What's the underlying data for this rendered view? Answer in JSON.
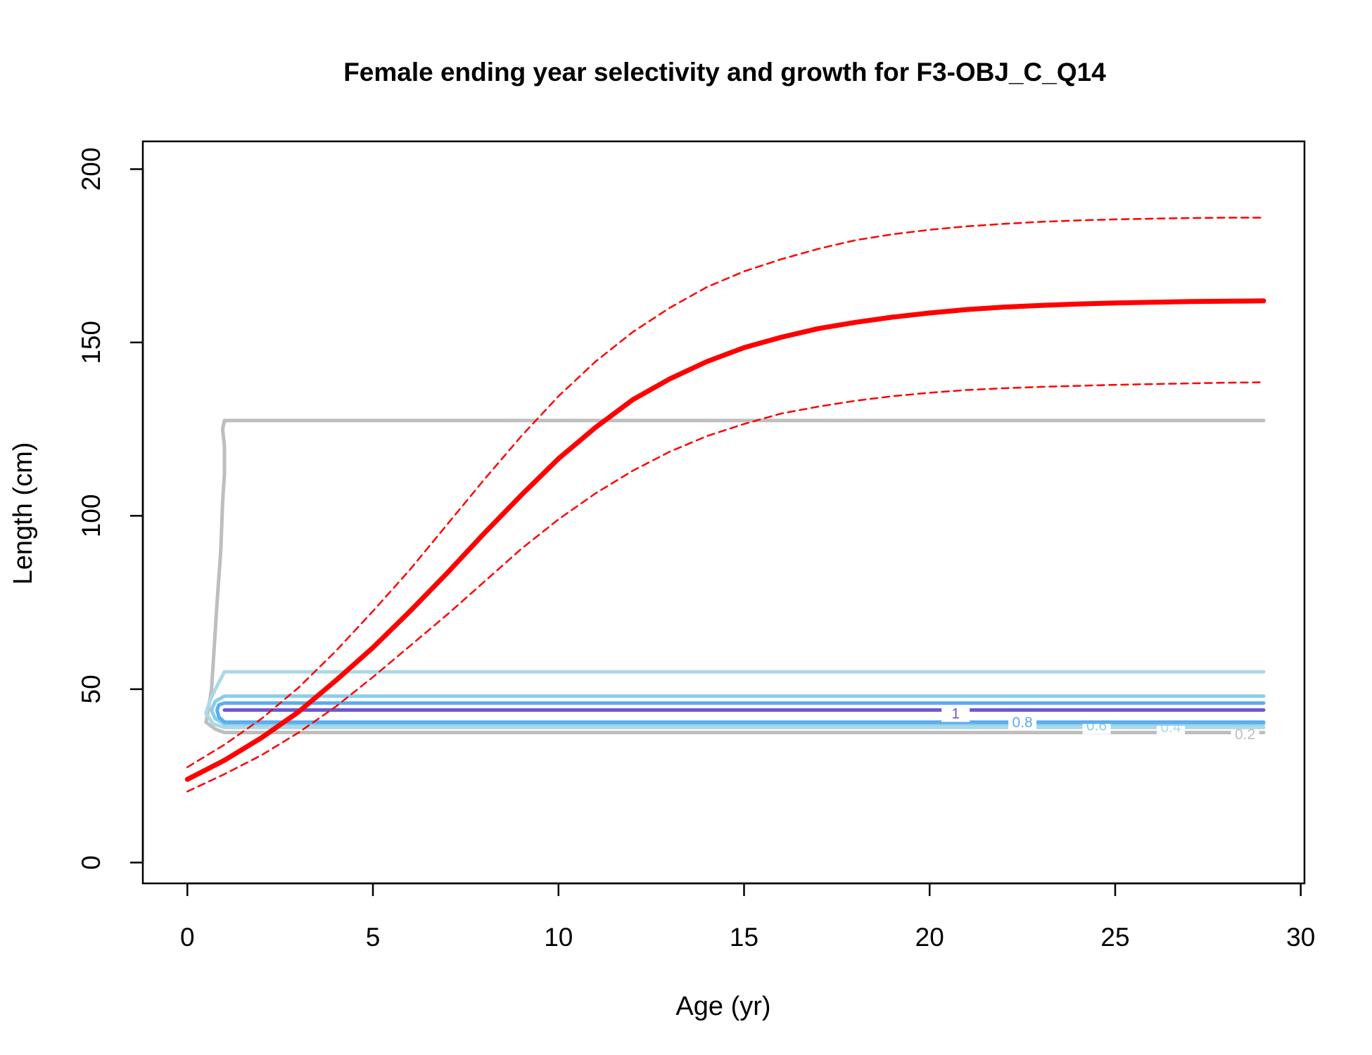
{
  "chart_data": {
    "type": "line",
    "title": "Female ending year selectivity and growth for F3-OBJ_C_Q14",
    "xlabel": "Age (yr)",
    "ylabel": "Length (cm)",
    "xlim": [
      -1.2,
      30.1
    ],
    "ylim": [
      -6,
      208
    ],
    "x_ticks": [
      0,
      5,
      10,
      15,
      20,
      25,
      30
    ],
    "y_ticks": [
      0,
      50,
      100,
      150,
      200
    ],
    "grid": false,
    "colors": {
      "mean_growth": "#ff0000",
      "interval": "#ff0000",
      "contour_0_2": "#bebebe",
      "contour_0_4": "#add8e6",
      "contour_0_6": "#87ceeb",
      "contour_0_8": "#5cacee",
      "contour_1": "#6a5acd"
    },
    "series": [
      {
        "role": "mean-growth",
        "x": [
          0,
          1,
          2,
          3,
          4,
          5,
          6,
          7,
          8,
          9,
          10,
          11,
          12,
          13,
          14,
          15,
          16,
          17,
          18,
          19,
          20,
          21,
          22,
          23,
          24,
          25,
          26,
          27,
          28,
          29
        ],
        "y": [
          24,
          29.5,
          36,
          43.5,
          52.5,
          62,
          72.5,
          83.5,
          95,
          106,
          116.5,
          125.5,
          133.5,
          139.5,
          144.5,
          148.5,
          151.5,
          154,
          155.8,
          157.3,
          158.5,
          159.5,
          160.2,
          160.7,
          161.1,
          161.4,
          161.6,
          161.8,
          161.9,
          162
        ]
      },
      {
        "role": "upper-interval",
        "x": [
          0,
          1,
          2,
          3,
          4,
          5,
          6,
          7,
          8,
          9,
          10,
          11,
          12,
          13,
          14,
          15,
          16,
          17,
          18,
          19,
          20,
          21,
          22,
          23,
          24,
          25,
          26,
          27,
          28,
          29
        ],
        "y": [
          27.5,
          34,
          41.5,
          50.5,
          61,
          72.5,
          84.5,
          97.5,
          110.5,
          123,
          134.5,
          144.5,
          153,
          160,
          166,
          170.5,
          174,
          177,
          179.5,
          181.2,
          182.5,
          183.5,
          184.2,
          184.8,
          185.2,
          185.5,
          185.7,
          185.9,
          186,
          186
        ]
      },
      {
        "role": "lower-interval",
        "x": [
          0,
          1,
          2,
          3,
          4,
          5,
          6,
          7,
          8,
          9,
          10,
          11,
          12,
          13,
          14,
          15,
          16,
          17,
          18,
          19,
          20,
          21,
          22,
          23,
          24,
          25,
          26,
          27,
          28,
          29
        ],
        "y": [
          20.5,
          25.5,
          31,
          37.5,
          45,
          53.5,
          62.5,
          71.5,
          81,
          90.5,
          99,
          106.5,
          113,
          118.5,
          123,
          126.5,
          129.5,
          131.5,
          133.2,
          134.5,
          135.5,
          136.3,
          136.8,
          137.2,
          137.5,
          137.8,
          138,
          138.2,
          138.4,
          138.5
        ]
      }
    ],
    "contours": [
      {
        "level": "0.2",
        "label_x": 28.5,
        "label_y": 37,
        "x": [
          29,
          1,
          0.75,
          0.5,
          0.55,
          0.65,
          0.7,
          0.8,
          0.9,
          0.95,
          1,
          1,
          0.95,
          1,
          1.1,
          29
        ],
        "y": [
          37.5,
          37.5,
          38.5,
          40.5,
          43,
          50,
          58,
          75,
          90,
          104,
          112,
          120,
          125,
          127.5,
          127.5,
          127.5
        ]
      },
      {
        "level": "0.4",
        "label_x": 26.5,
        "label_y": 39,
        "x": [
          29,
          1,
          0.7,
          0.5,
          0.6,
          0.8,
          1,
          29
        ],
        "y": [
          39,
          39,
          40,
          43,
          46.5,
          51,
          55,
          55
        ]
      },
      {
        "level": "0.6",
        "label_x": 24.5,
        "label_y": 39.5,
        "x": [
          29,
          1,
          0.75,
          0.65,
          0.75,
          1,
          29
        ],
        "y": [
          40,
          40,
          41.5,
          44,
          46.5,
          48,
          48
        ]
      },
      {
        "level": "0.8",
        "label_x": 22.5,
        "label_y": 40.5,
        "x": [
          29,
          1,
          0.85,
          0.8,
          0.85,
          1,
          29
        ],
        "y": [
          40.5,
          40.5,
          42,
          44,
          45.5,
          46,
          46
        ]
      },
      {
        "level": "1",
        "label_x": 20.7,
        "label_y": 43,
        "x": [
          1,
          29
        ],
        "y": [
          44,
          44
        ]
      }
    ]
  }
}
